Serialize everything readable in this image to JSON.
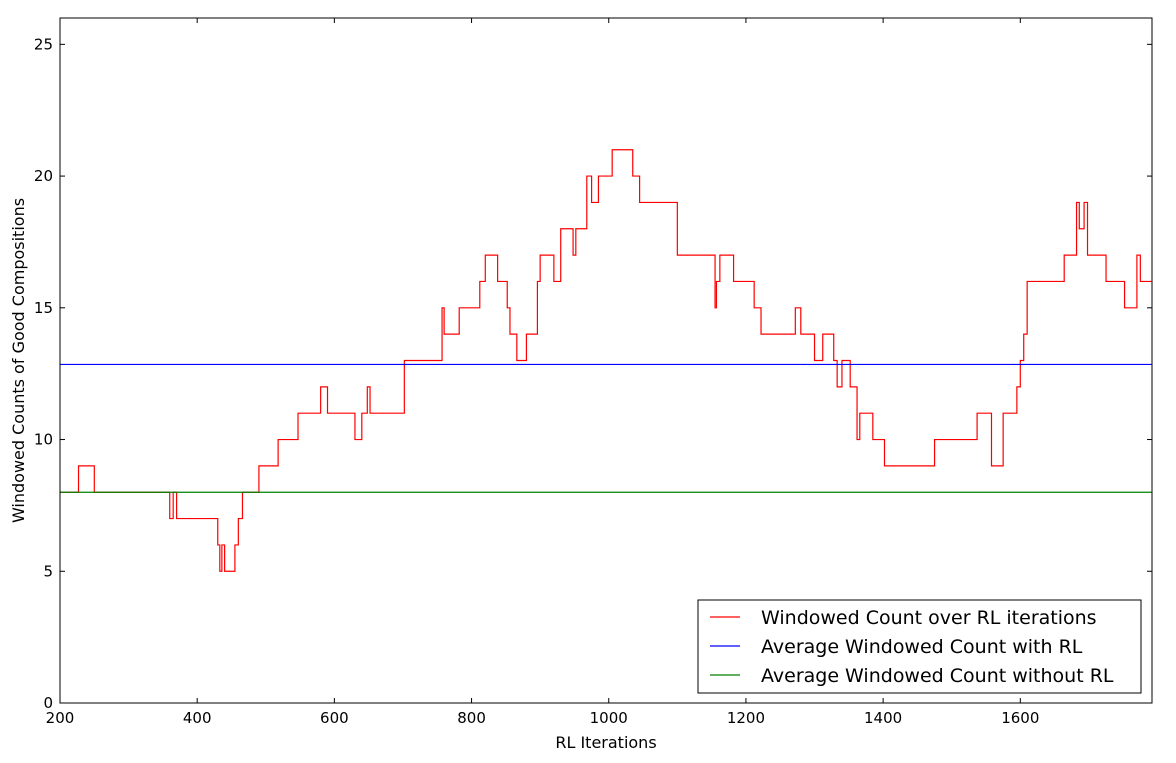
{
  "chart_data": {
    "type": "line",
    "title": "",
    "xlabel": "RL Iterations",
    "ylabel": "Windowed Counts of Good Compositions",
    "xlim": [
      200,
      1792
    ],
    "ylim": [
      0,
      26
    ],
    "x_ticks": [
      200,
      400,
      600,
      800,
      1000,
      1200,
      1400,
      1600
    ],
    "y_ticks": [
      0,
      5,
      10,
      15,
      20,
      25
    ],
    "grid": false,
    "legend_position": "lower-right",
    "series": [
      {
        "name": "Windowed Count over RL iterations",
        "color": "#ff0000",
        "step": true,
        "x": [
          200,
          227,
          250,
          353,
          360,
          365,
          370,
          415,
          430,
          433,
          436,
          440,
          455,
          460,
          466,
          490,
          518,
          547,
          580,
          590,
          630,
          640,
          648,
          652,
          702,
          757,
          760,
          782,
          812,
          820,
          838,
          852,
          856,
          866,
          880,
          896,
          900,
          905,
          920,
          930,
          938,
          948,
          952,
          958,
          968,
          975,
          985,
          1005,
          1035,
          1045,
          1100,
          1155,
          1157,
          1162,
          1182,
          1212,
          1222,
          1272,
          1280,
          1300,
          1312,
          1328,
          1333,
          1340,
          1352,
          1362,
          1366,
          1372,
          1385,
          1402,
          1475,
          1537,
          1558,
          1575,
          1590,
          1595,
          1600,
          1605,
          1610,
          1664,
          1682,
          1686,
          1693,
          1698,
          1705,
          1725,
          1752,
          1770,
          1775,
          1792
        ],
        "y": [
          8,
          9,
          8,
          8,
          7,
          8,
          7,
          7,
          6,
          5,
          6,
          5,
          6,
          7,
          8,
          9,
          10,
          11,
          12,
          11,
          10,
          11,
          12,
          11,
          13,
          15,
          14,
          15,
          16,
          17,
          16,
          15,
          14,
          13,
          14,
          16,
          17,
          17,
          16,
          18,
          18,
          17,
          18,
          18,
          20,
          19,
          20,
          21,
          20,
          19,
          17,
          15,
          16,
          17,
          16,
          15,
          14,
          15,
          14,
          13,
          14,
          13,
          12,
          13,
          12,
          10,
          11,
          11,
          10,
          9,
          10,
          11,
          9,
          11,
          11,
          12,
          13,
          14,
          16,
          17,
          19,
          18,
          19,
          17,
          17,
          16,
          15,
          17,
          16,
          16
        ]
      },
      {
        "name": "Average Windowed Count with RL",
        "color": "#0000ff",
        "x": [
          200,
          1792
        ],
        "y": [
          12.85,
          12.85
        ]
      },
      {
        "name": "Average Windowed Count without RL",
        "color": "#008000",
        "x": [
          200,
          1792
        ],
        "y": [
          8,
          8
        ]
      }
    ]
  }
}
